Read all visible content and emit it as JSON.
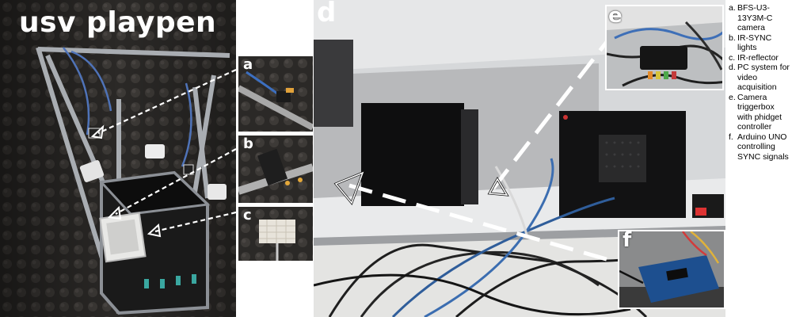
{
  "panel_left": {
    "title": "usv playpen"
  },
  "inset_a": {
    "label": "a"
  },
  "inset_b": {
    "label": "b"
  },
  "inset_c": {
    "label": "c"
  },
  "panel_right": {
    "label": "d"
  },
  "inset_e": {
    "label": "e"
  },
  "inset_f": {
    "label": "f"
  },
  "legend": {
    "items": [
      {
        "key": "a.",
        "text": "BFS-U3-13Y3M-C camera"
      },
      {
        "key": "b.",
        "text": "IR-SYNC lights"
      },
      {
        "key": "c.",
        "text": "IR-reflector"
      },
      {
        "key": "d.",
        "text": "PC system for video acquisition"
      },
      {
        "key": "e.",
        "text": "Camera triggerbox with phidget controller"
      },
      {
        "key": "f.",
        "text": "Arduino UNO controlling SYNC signals"
      }
    ]
  }
}
